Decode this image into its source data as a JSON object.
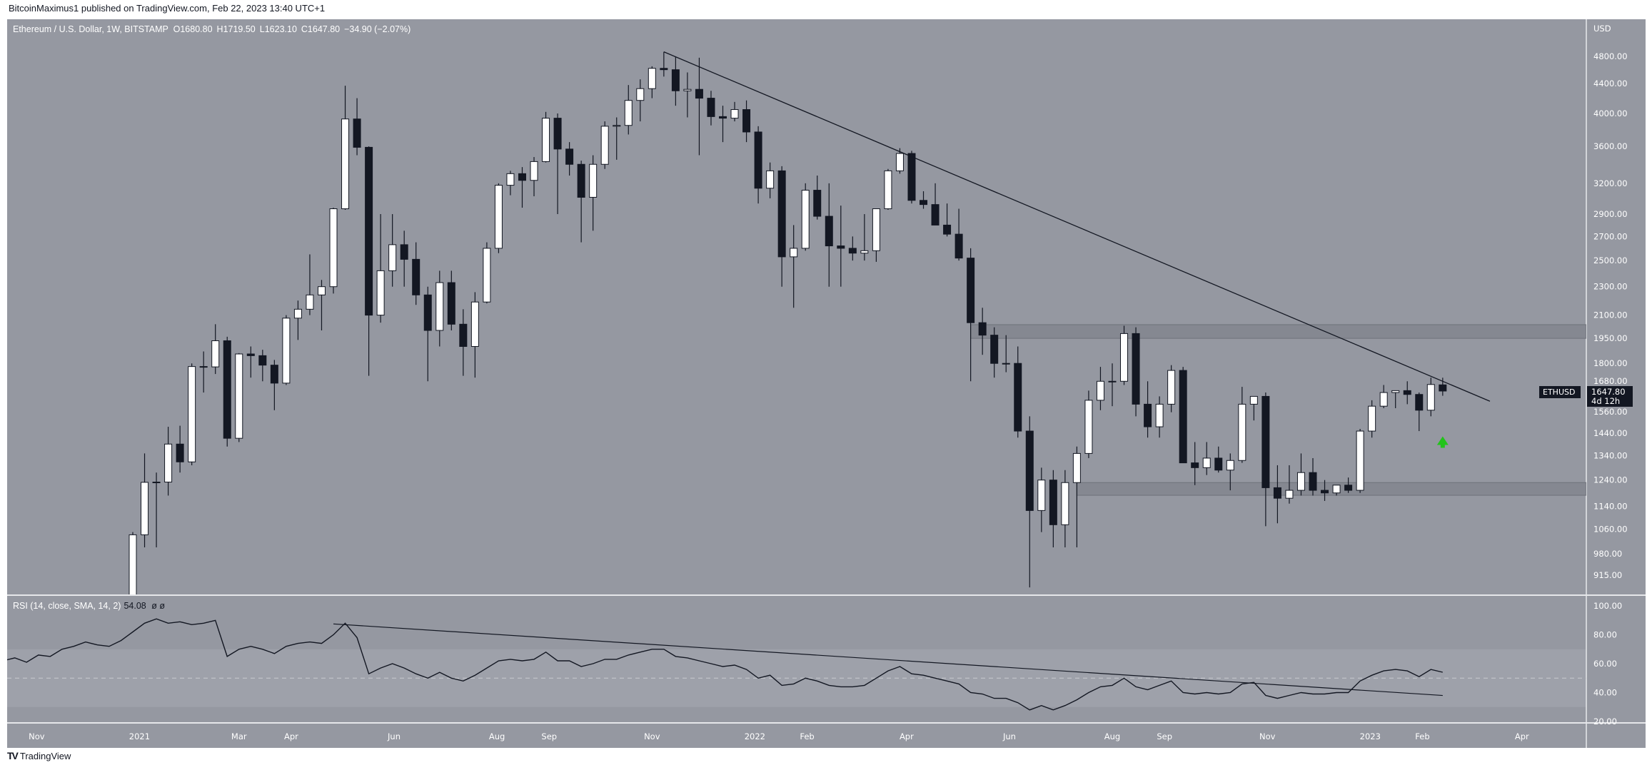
{
  "header": {
    "published": "BitcoinMaximus1 published on TradingView.com, Feb 22, 2023 13:40 UTC+1"
  },
  "legend": {
    "symbol": "Ethereum / U.S. Dollar, 1W, BITSTAMP",
    "open": "O1680.80",
    "high": "H1719.50",
    "low": "L1623.10",
    "close": "C1647.80",
    "change": "−34.90 (−2.07%)"
  },
  "rsi_legend": {
    "label": "RSI (14, close, SMA, 14, 2)",
    "value": "54.08",
    "extra": "ø ø"
  },
  "price_label": {
    "symbol": "ETHUSD",
    "price": "1647.80",
    "countdown": "4d 12h"
  },
  "footer": {
    "logo": "TV",
    "brand": "TradingView"
  },
  "colors": {
    "background": "#9598a1",
    "rsi_band": "#9ea1aa",
    "up_body": "#ffffff",
    "down_body": "#131722",
    "outline": "#131722",
    "zone": "#80838c",
    "arrow": "#22c31a",
    "label_bg": "#131722"
  },
  "chart_data": [
    {
      "type": "candlestick",
      "title": "Ethereum / U.S. Dollar, 1W, BITSTAMP",
      "interval": "1W",
      "first_week": "2020-12-28",
      "y_scale": "log",
      "ylabel": "USD",
      "ylim": [
        915,
        4800
      ],
      "y_ticks": [
        "4800.00",
        "4400.00",
        "4000.00",
        "3600.00",
        "3200.00",
        "2900.00",
        "2700.00",
        "2500.00",
        "2300.00",
        "2100.00",
        "1950.00",
        "1800.00",
        "1680.00",
        "1560.00",
        "1440.00",
        "1340.00",
        "1240.00",
        "1140.00",
        "1060.00",
        "980.00",
        "915.00"
      ],
      "x_ticks": [
        {
          "label": "Nov",
          "date": "2020-11-01"
        },
        {
          "label": "2021",
          "date": "2021-01-01"
        },
        {
          "label": "Mar",
          "date": "2021-03-01"
        },
        {
          "label": "Apr",
          "date": "2021-04-01"
        },
        {
          "label": "Jun",
          "date": "2021-06-01"
        },
        {
          "label": "Aug",
          "date": "2021-08-01"
        },
        {
          "label": "Sep",
          "date": "2021-09-01"
        },
        {
          "label": "Nov",
          "date": "2021-11-01"
        },
        {
          "label": "2022",
          "date": "2022-01-01"
        },
        {
          "label": "Feb",
          "date": "2022-02-01"
        },
        {
          "label": "Apr",
          "date": "2022-04-01"
        },
        {
          "label": "Jun",
          "date": "2022-06-01"
        },
        {
          "label": "Aug",
          "date": "2022-08-01"
        },
        {
          "label": "Sep",
          "date": "2022-09-01"
        },
        {
          "label": "Nov",
          "date": "2022-11-01"
        },
        {
          "label": "2023",
          "date": "2023-01-01"
        },
        {
          "label": "Feb",
          "date": "2023-02-01"
        },
        {
          "label": "Apr",
          "date": "2023-04-01"
        }
      ],
      "ohlc": [
        [
          737,
          1050,
          715,
          1041
        ],
        [
          1041,
          1350,
          1000,
          1231
        ],
        [
          1231,
          1270,
          1000,
          1232
        ],
        [
          1232,
          1470,
          1180,
          1391
        ],
        [
          1391,
          1475,
          1270,
          1314
        ],
        [
          1314,
          1800,
          1300,
          1782
        ],
        [
          1782,
          1870,
          1640,
          1780
        ],
        [
          1780,
          2040,
          1740,
          1935
        ],
        [
          1935,
          1960,
          1380,
          1417
        ],
        [
          1417,
          1860,
          1400,
          1855
        ],
        [
          1855,
          1900,
          1720,
          1845
        ],
        [
          1845,
          1880,
          1700,
          1790
        ],
        [
          1790,
          1820,
          1550,
          1690
        ],
        [
          1690,
          2100,
          1680,
          2080
        ],
        [
          2080,
          2200,
          1940,
          2140
        ],
        [
          2140,
          2550,
          2100,
          2240
        ],
        [
          2240,
          2350,
          2000,
          2300
        ],
        [
          2300,
          2960,
          2250,
          2950
        ],
        [
          2950,
          4370,
          2940,
          3930
        ],
        [
          3930,
          4200,
          3500,
          3590
        ],
        [
          3590,
          3600,
          1730,
          2100
        ],
        [
          2100,
          2900,
          2050,
          2420
        ],
        [
          2420,
          2900,
          2300,
          2630
        ],
        [
          2630,
          2750,
          2300,
          2510
        ],
        [
          2510,
          2650,
          2170,
          2240
        ],
        [
          2240,
          2300,
          1700,
          2000
        ],
        [
          2000,
          2420,
          1900,
          2330
        ],
        [
          2330,
          2420,
          2000,
          2040
        ],
        [
          2040,
          2140,
          1730,
          1900
        ],
        [
          1900,
          2260,
          1720,
          2190
        ],
        [
          2190,
          2650,
          2180,
          2600
        ],
        [
          2600,
          3200,
          2560,
          3180
        ],
        [
          3180,
          3330,
          3080,
          3300
        ],
        [
          3300,
          3370,
          2960,
          3230
        ],
        [
          3230,
          3480,
          3070,
          3430
        ],
        [
          3430,
          4020,
          3420,
          3940
        ],
        [
          3940,
          4000,
          2900,
          3570
        ],
        [
          3570,
          3650,
          3280,
          3400
        ],
        [
          3400,
          3440,
          2650,
          3060
        ],
        [
          3060,
          3500,
          2750,
          3400
        ],
        [
          3400,
          3900,
          3350,
          3840
        ],
        [
          3840,
          3950,
          3450,
          3850
        ],
        [
          3850,
          4380,
          3740,
          4170
        ],
        [
          4170,
          4460,
          3900,
          4330
        ],
        [
          4330,
          4650,
          4200,
          4620
        ],
        [
          4620,
          4870,
          4500,
          4600
        ],
        [
          4600,
          4800,
          4100,
          4300
        ],
        [
          4300,
          4560,
          3950,
          4320
        ],
        [
          4320,
          4780,
          3500,
          4200
        ],
        [
          4200,
          4300,
          3850,
          3960
        ],
        [
          3960,
          4100,
          3650,
          3940
        ],
        [
          3940,
          4150,
          3900,
          4050
        ],
        [
          4050,
          4170,
          3650,
          3770
        ],
        [
          3770,
          3840,
          3000,
          3150
        ],
        [
          3150,
          3420,
          3050,
          3330
        ],
        [
          3330,
          3380,
          2300,
          2530
        ],
        [
          2530,
          2800,
          2150,
          2600
        ],
        [
          2600,
          3200,
          2580,
          3130
        ],
        [
          3130,
          3280,
          2850,
          2880
        ],
        [
          2880,
          3200,
          2300,
          2620
        ],
        [
          2620,
          2980,
          2300,
          2600
        ],
        [
          2600,
          2700,
          2500,
          2560
        ],
        [
          2560,
          2900,
          2500,
          2580
        ],
        [
          2580,
          2950,
          2490,
          2950
        ],
        [
          2950,
          3350,
          2940,
          3330
        ],
        [
          3330,
          3580,
          3300,
          3520
        ],
        [
          3520,
          3550,
          3000,
          3030
        ],
        [
          3030,
          3120,
          2950,
          2990
        ],
        [
          2990,
          3200,
          2800,
          2800
        ],
        [
          2800,
          3000,
          2700,
          2720
        ],
        [
          2720,
          2950,
          2500,
          2520
        ],
        [
          2520,
          2600,
          1700,
          2050
        ],
        [
          2050,
          2150,
          1850,
          1970
        ],
        [
          1970,
          2020,
          1720,
          1800
        ],
        [
          1800,
          1970,
          1750,
          1800
        ],
        [
          1800,
          1900,
          1420,
          1450
        ],
        [
          1450,
          1520,
          880,
          1125
        ],
        [
          1125,
          1290,
          1050,
          1240
        ],
        [
          1240,
          1280,
          1000,
          1075
        ],
        [
          1075,
          1280,
          1000,
          1230
        ],
        [
          1230,
          1380,
          1000,
          1350
        ],
        [
          1350,
          1650,
          1330,
          1600
        ],
        [
          1600,
          1780,
          1550,
          1700
        ],
        [
          1700,
          1800,
          1570,
          1700
        ],
        [
          1700,
          2030,
          1680,
          1980
        ],
        [
          1980,
          2020,
          1520,
          1580
        ],
        [
          1580,
          1700,
          1420,
          1470
        ],
        [
          1470,
          1620,
          1420,
          1580
        ],
        [
          1580,
          1790,
          1540,
          1760
        ],
        [
          1760,
          1780,
          1310,
          1310
        ],
        [
          1310,
          1400,
          1220,
          1290
        ],
        [
          1290,
          1400,
          1260,
          1330
        ],
        [
          1330,
          1380,
          1270,
          1280
        ],
        [
          1280,
          1350,
          1200,
          1320
        ],
        [
          1320,
          1670,
          1310,
          1580
        ],
        [
          1580,
          1620,
          1500,
          1620
        ],
        [
          1620,
          1640,
          1070,
          1210
        ],
        [
          1210,
          1300,
          1080,
          1170
        ],
        [
          1170,
          1300,
          1150,
          1200
        ],
        [
          1200,
          1350,
          1180,
          1270
        ],
        [
          1270,
          1330,
          1180,
          1200
        ],
        [
          1200,
          1240,
          1160,
          1190
        ],
        [
          1190,
          1220,
          1180,
          1220
        ],
        [
          1220,
          1250,
          1190,
          1200
        ],
        [
          1200,
          1460,
          1190,
          1450
        ],
        [
          1450,
          1600,
          1420,
          1570
        ],
        [
          1570,
          1680,
          1560,
          1640
        ],
        [
          1640,
          1650,
          1560,
          1650
        ],
        [
          1650,
          1700,
          1580,
          1630
        ],
        [
          1630,
          1640,
          1450,
          1550
        ],
        [
          1550,
          1720,
          1520,
          1682.7
        ],
        [
          1680.8,
          1719.5,
          1623.1,
          1647.8
        ]
      ],
      "trendline": {
        "from": {
          "date": "2021-11-08",
          "price": 4870
        },
        "to": {
          "date": "2023-03-13",
          "price": 1595
        }
      },
      "zones": [
        {
          "from_date": "2022-05-09",
          "low": 1950,
          "high": 2037
        },
        {
          "from_date": "2022-07-11",
          "low": 1181,
          "high": 1230
        }
      ],
      "annotation_arrow": {
        "date": "2023-02-13",
        "price": 1400,
        "direction": "up"
      }
    },
    {
      "type": "line",
      "title": "RSI (14, close, SMA, 14, 2)",
      "ylim": [
        20,
        100
      ],
      "y_ticks": [
        "100.00",
        "80.00",
        "60.00",
        "40.00",
        "20.00"
      ],
      "band": [
        30,
        70
      ],
      "midline": 50,
      "values_end_aligned": true,
      "values": [
        62,
        64,
        61,
        66,
        65,
        70,
        72,
        75,
        73,
        72,
        76,
        82,
        88,
        91,
        88,
        89,
        87,
        88,
        90,
        65,
        70,
        72,
        70,
        67,
        72,
        74,
        75,
        74,
        80,
        88,
        78,
        53,
        57,
        60,
        57,
        53,
        50,
        54,
        50,
        48,
        52,
        57,
        62,
        63,
        62,
        63,
        68,
        62,
        62,
        58,
        60,
        63,
        63,
        66,
        68,
        70,
        70,
        65,
        64,
        62,
        60,
        58,
        59,
        56,
        50,
        52,
        45,
        46,
        50,
        48,
        45,
        44,
        44,
        45,
        50,
        55,
        58,
        53,
        52,
        50,
        48,
        46,
        40,
        39,
        36,
        36,
        33,
        28,
        31,
        28,
        31,
        35,
        40,
        44,
        45,
        50,
        44,
        42,
        45,
        48,
        40,
        39,
        40,
        39,
        40,
        46,
        47,
        38,
        36,
        38,
        40,
        39,
        39,
        40,
        40,
        48,
        52,
        55,
        56,
        55,
        51,
        56,
        54.08
      ],
      "trendline": {
        "from": {
          "date": "2021-04-26",
          "value": 87.5
        },
        "to": {
          "date": "2023-02-13",
          "value": 38
        }
      }
    }
  ]
}
